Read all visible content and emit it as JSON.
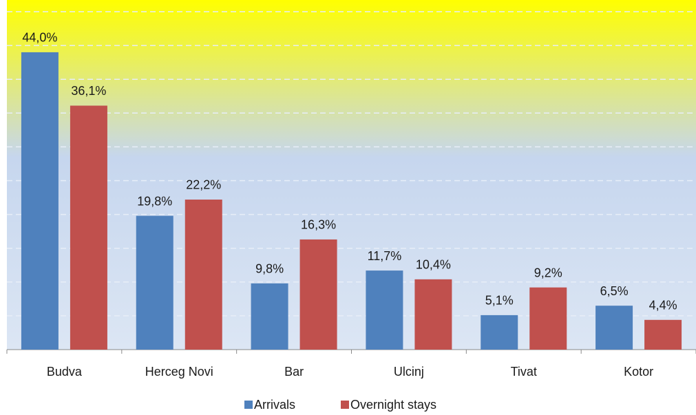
{
  "chart_data": {
    "type": "bar",
    "categories": [
      "Budva",
      "Herceg Novi",
      "Bar",
      "Ulcinj",
      "Tivat",
      "Kotor"
    ],
    "series": [
      {
        "name": "Arrivals",
        "color": "#4f81bd",
        "values": [
          44.0,
          19.8,
          9.8,
          11.7,
          5.1,
          6.5
        ],
        "value_labels": [
          "44,0%",
          "19,8%",
          "9,8%",
          "11,7%",
          "5,1%",
          "6,5%"
        ]
      },
      {
        "name": "Overnight stays",
        "color": "#c0504d",
        "values": [
          36.1,
          22.2,
          16.3,
          10.4,
          9.2,
          4.4
        ],
        "value_labels": [
          "36,1%",
          "22,2%",
          "16,3%",
          "10,4%",
          "9,2%",
          "4,4%"
        ]
      }
    ],
    "ylim": [
      0,
      50
    ],
    "yticks": [
      0,
      5,
      10,
      15,
      20,
      25,
      30,
      35,
      40,
      45,
      50
    ],
    "grid": true,
    "legend": "bottom"
  }
}
